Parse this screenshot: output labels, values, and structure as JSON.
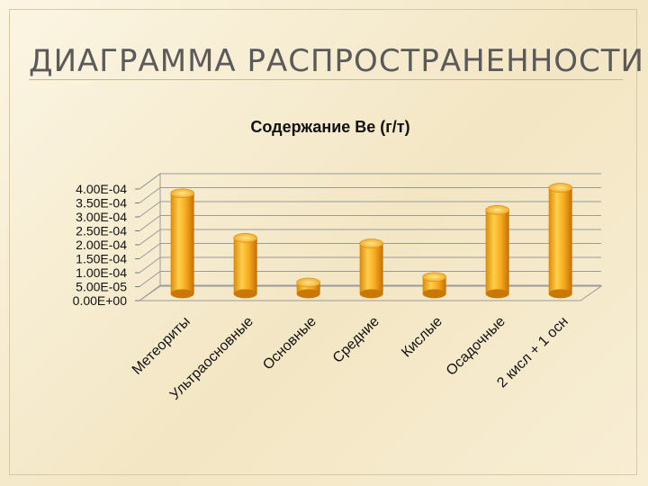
{
  "slide": {
    "title": "ДИАГРАММА РАСПРОСТРАНЕННОСТИ"
  },
  "colors": {
    "bar_body": "#f2a51c",
    "bar_highlight": "#ffd65a",
    "bar_shadow": "#c46f05",
    "gridline": "#9a9a9a",
    "axis_text": "#111111"
  },
  "chart_data": {
    "type": "bar",
    "title": "Содержание Ве  (г/т)",
    "xlabel": "",
    "ylabel": "",
    "ylim": [
      0,
      0.0004
    ],
    "grid": true,
    "legend": "none",
    "y_ticks": [
      "4.00E-04",
      "3.50E-04",
      "3.00E-04",
      "2.50E-04",
      "2.00E-04",
      "1.50E-04",
      "1.00E-04",
      "5.00E-05",
      "0.00E+00"
    ],
    "categories": [
      "Метеориты",
      "Ультраосновные",
      "Основные",
      "Средние",
      "Кислые",
      "Осадочные",
      "2 кисл + 1  осн"
    ],
    "values": [
      0.00036,
      0.0002,
      4e-05,
      0.00018,
      6e-05,
      0.0003,
      0.00038
    ]
  }
}
